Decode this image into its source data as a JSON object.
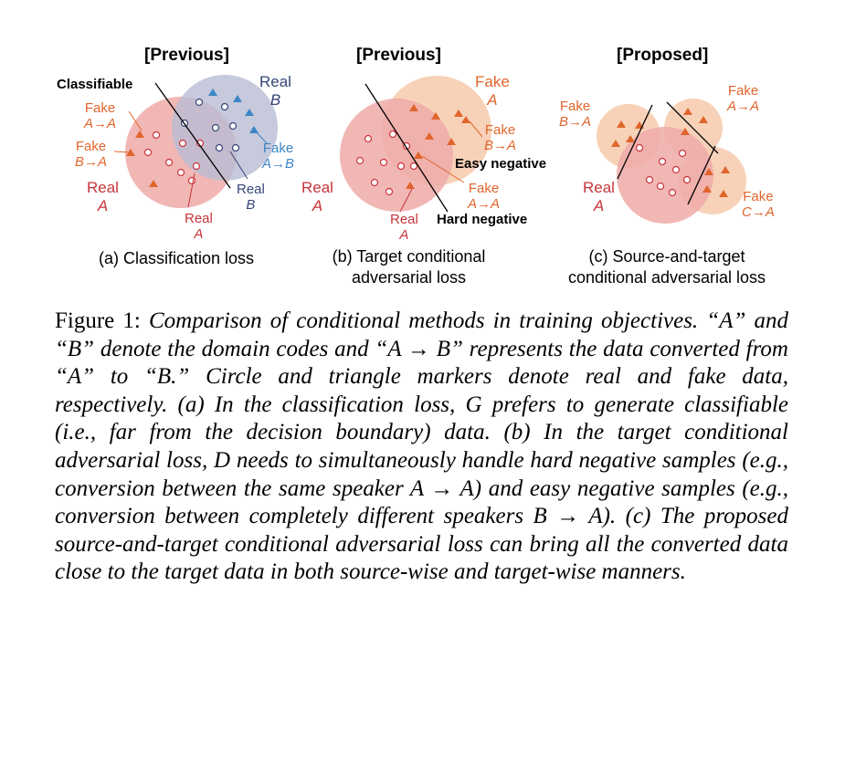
{
  "figure": {
    "panels": [
      {
        "header": "[Previous]",
        "labels": {
          "classifiable": "Classifiable",
          "real_b_top_1": "Real",
          "real_b_top_2": "B",
          "fake_aa_1": "Fake",
          "fake_aa_2": "A→A",
          "fake_ba_1": "Fake",
          "fake_ba_2": "B→A",
          "fake_ab_1": "Fake",
          "fake_ab_2": "A→B",
          "real_a_left_1": "Real",
          "real_a_left_2": "A",
          "real_b_bottom_1": "Real",
          "real_b_bottom_2": "B",
          "real_a_bottom_1": "Real",
          "real_a_bottom_2": "A"
        },
        "caption_1": "(a) Classification loss"
      },
      {
        "header": "[Previous]",
        "labels": {
          "real_a_left_1": "Real",
          "real_a_left_2": "A",
          "fake_a_1": "Fake",
          "fake_a_2": "A",
          "fake_ba_1": "Fake",
          "fake_ba_2": "B→A",
          "easy_negative": "Easy negative",
          "fake_aa_1": "Fake",
          "fake_aa_2": "A→A",
          "real_a_bottom_1": "Real",
          "real_a_bottom_2": "A",
          "hard_negative": "Hard negative"
        },
        "caption_1": "(b) Target conditional",
        "caption_2": "adversarial loss"
      },
      {
        "header": "[Proposed]",
        "labels": {
          "fake_ba_1": "Fake",
          "fake_ba_2": "B→A",
          "fake_aa_1": "Fake",
          "fake_aa_2": "A→A",
          "real_a_1": "Real",
          "real_a_2": "A",
          "fake_ca_1": "Fake",
          "fake_ca_2": "C→A"
        },
        "caption_1": "(c) Source-and-target",
        "caption_2": "conditional adversarial loss"
      }
    ],
    "caption": {
      "lead": "Figure 1: ",
      "body": "Comparison of conditional methods in training objectives. “A” and “B” denote the domain codes and “A → B” represents the data converted from “A” to “B.” Circle and triangle markers denote real and fake data, respectively. (a) In the classification loss, G prefers to generate classifiable (i.e., far from the decision boundary) data. (b) In the target conditional adversarial loss, D needs to simultaneously handle hard negative samples (e.g., conversion between the same speaker A → A) and easy negative samples (e.g., conversion between completely different speakers B → A). (c) The proposed source-and-target conditional adversarial loss can bring all the converted data close to the target data in both source-wise and target-wise manners."
    },
    "colors": {
      "real_red": "#c8343a",
      "fake_orange": "#e0652c",
      "navy": "#35457a",
      "light_blue": "#3c86c6",
      "red_fill": "#eeaaa8",
      "orange_fill": "#f6cdb0",
      "navy_fill": "#b9bcd4"
    }
  }
}
